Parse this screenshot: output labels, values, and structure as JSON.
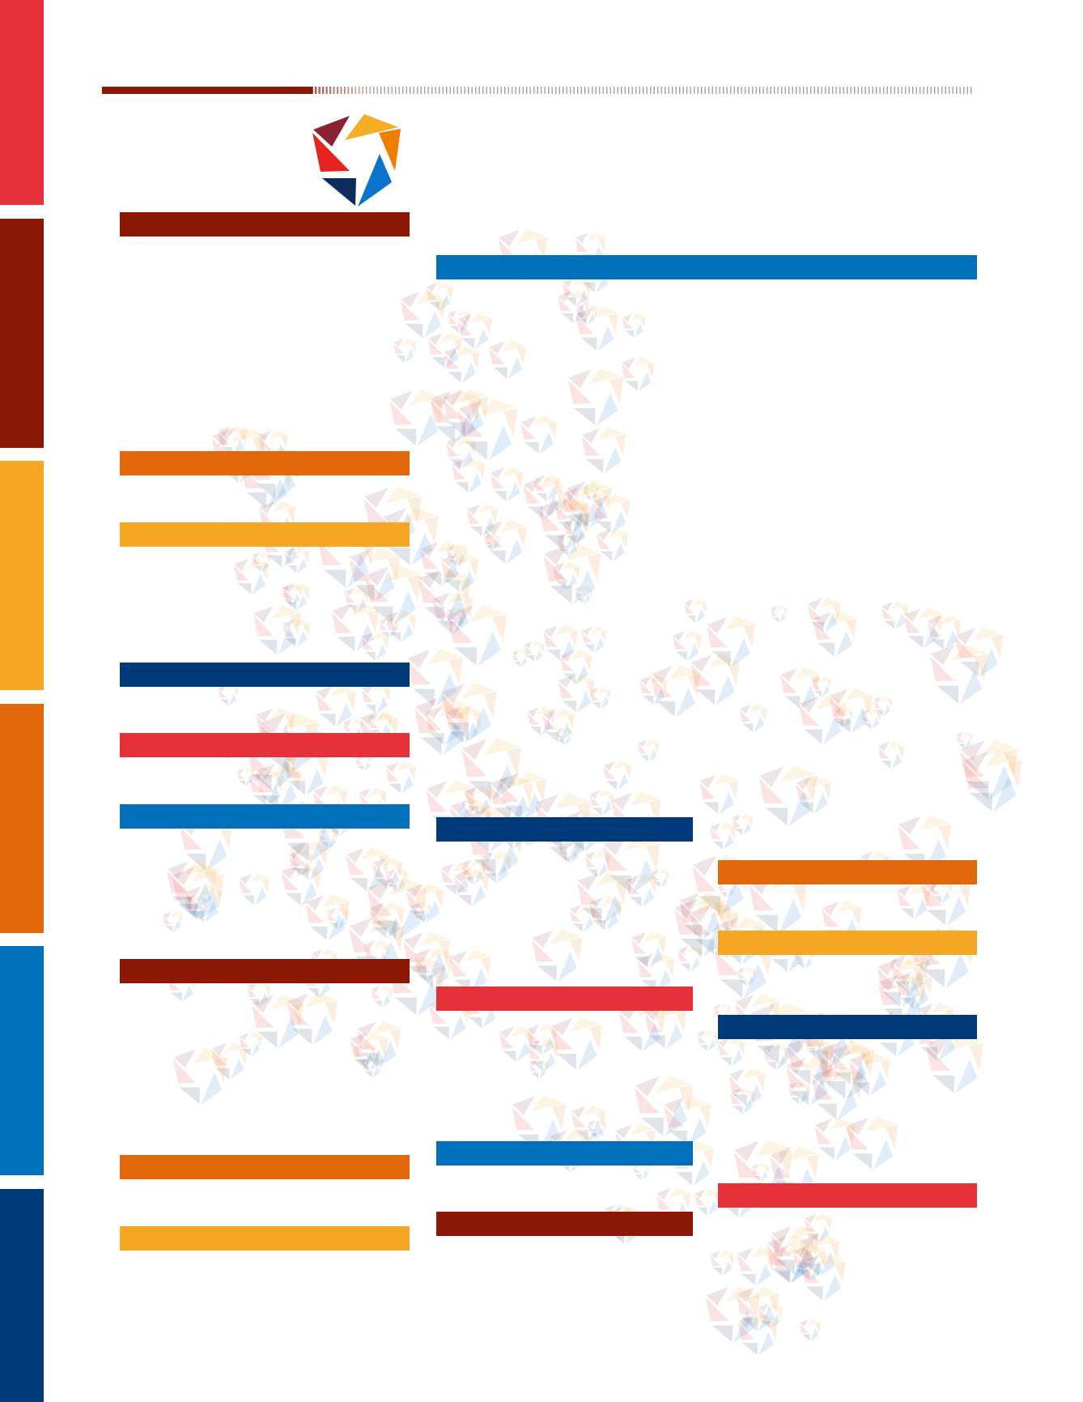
{
  "colors": {
    "red": "#e6313b",
    "dark_red": "#8b1804",
    "yellow": "#f5a623",
    "orange": "#e2670a",
    "blue": "#0070bb",
    "navy": "#003a79",
    "logo_maroon": "#8a2232",
    "logo_orange": "#ee7d00",
    "logo_navy": "#0c2d5c",
    "logo_blue": "#0a73cc"
  },
  "sidebar_strips": [
    "red",
    "dark_red",
    "yellow",
    "orange",
    "blue",
    "navy"
  ],
  "left_column_bars": [
    "dark_red",
    "orange",
    "yellow",
    "navy",
    "red",
    "blue",
    "dark_red",
    "orange",
    "yellow"
  ],
  "header_bar": "blue",
  "middle_column_bars": [
    "navy",
    "red",
    "blue",
    "dark_red"
  ],
  "right_column_bars": [
    "orange",
    "yellow",
    "navy",
    "red"
  ]
}
